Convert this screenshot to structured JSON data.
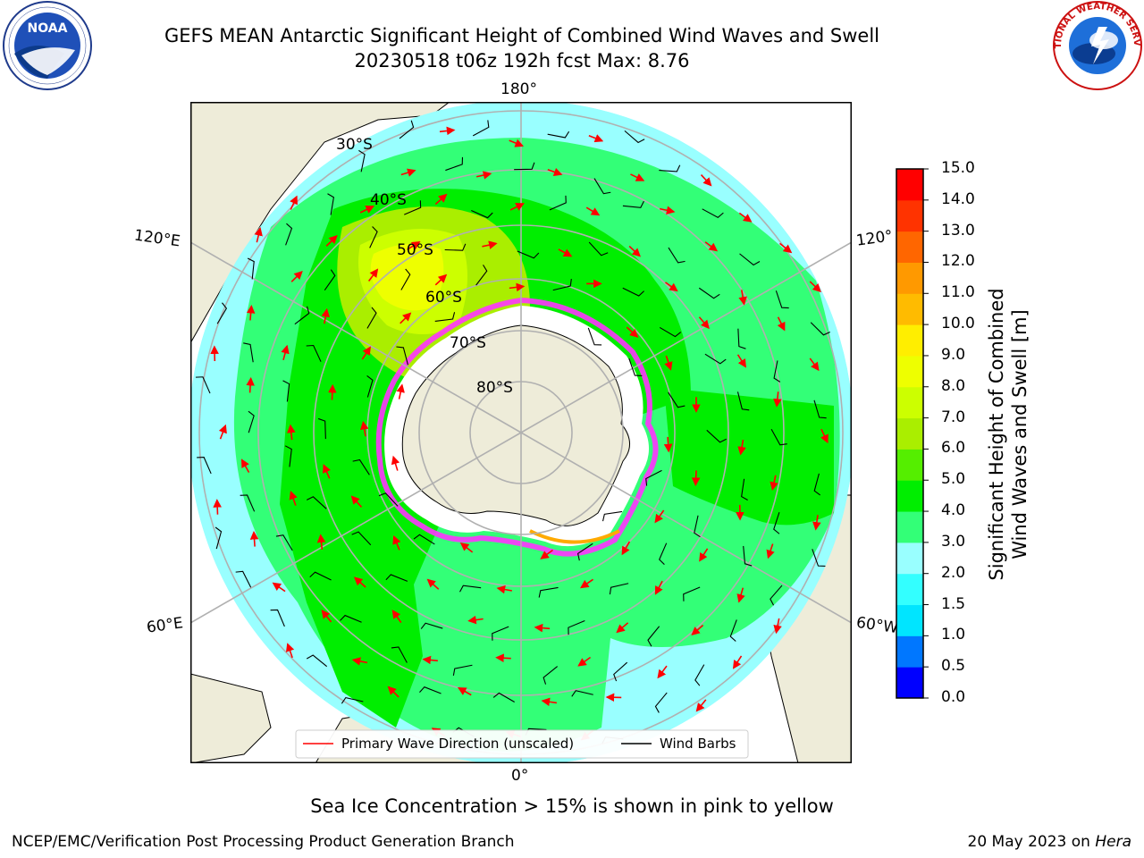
{
  "title": {
    "line1": "GEFS MEAN Antarctic Significant Height of Combined Wind Waves and Swell",
    "line2": "20230518 t06z 192h fcst   Max: 8.76"
  },
  "logos": {
    "left": {
      "name": "noaa-logo",
      "text": "NOAA"
    },
    "right": {
      "name": "national-weather-service-logo",
      "text": "NATIONAL WEATHER SERVICE"
    }
  },
  "map": {
    "projection": "south-polar-stereographic",
    "lon_labels": {
      "top": "180°",
      "bottom": "0°",
      "upper_left": "120°E",
      "upper_right": "120°",
      "lower_left": "60°E",
      "lower_right": "60°W"
    },
    "lat_labels": [
      "30°S",
      "40°S",
      "50°S",
      "60°S",
      "70°S",
      "80°S"
    ],
    "legend": {
      "primary_wave": "Primary Wave Direction (unscaled)",
      "wind_barbs": "Wind Barbs",
      "wave_color": "#ff0000",
      "barb_color": "#000000"
    },
    "land_color": "#eeecd9",
    "ocean_color": "#99ffff",
    "ice_colors": [
      "#ff33ff",
      "#ff99cc",
      "#ffaa00"
    ]
  },
  "colorbar": {
    "label_line1": "Significant Height of Combined",
    "label_line2": "Wind Waves and Swell [m]",
    "levels": [
      "0.0",
      "0.5",
      "1.0",
      "1.5",
      "2.0",
      "3.0",
      "4.0",
      "5.0",
      "6.0",
      "7.0",
      "8.0",
      "9.0",
      "10.0",
      "11.0",
      "12.0",
      "13.0",
      "14.0",
      "15.0"
    ],
    "colors": [
      "#0000ff",
      "#0077ff",
      "#00e5ff",
      "#33ffff",
      "#99ffff",
      "#33ff77",
      "#00ee00",
      "#55ee00",
      "#aaee00",
      "#ccff00",
      "#eeff00",
      "#ffee00",
      "#ffbb00",
      "#ff9900",
      "#ff6600",
      "#ff3300",
      "#ff0000"
    ]
  },
  "note": "Sea Ice Concentration > 15% is shown in pink to yellow",
  "footer": {
    "left": "NCEP/EMC/Verification Post Processing Product Generation Branch",
    "right_date": "20 May 2023 on ",
    "right_host": "Hera"
  }
}
